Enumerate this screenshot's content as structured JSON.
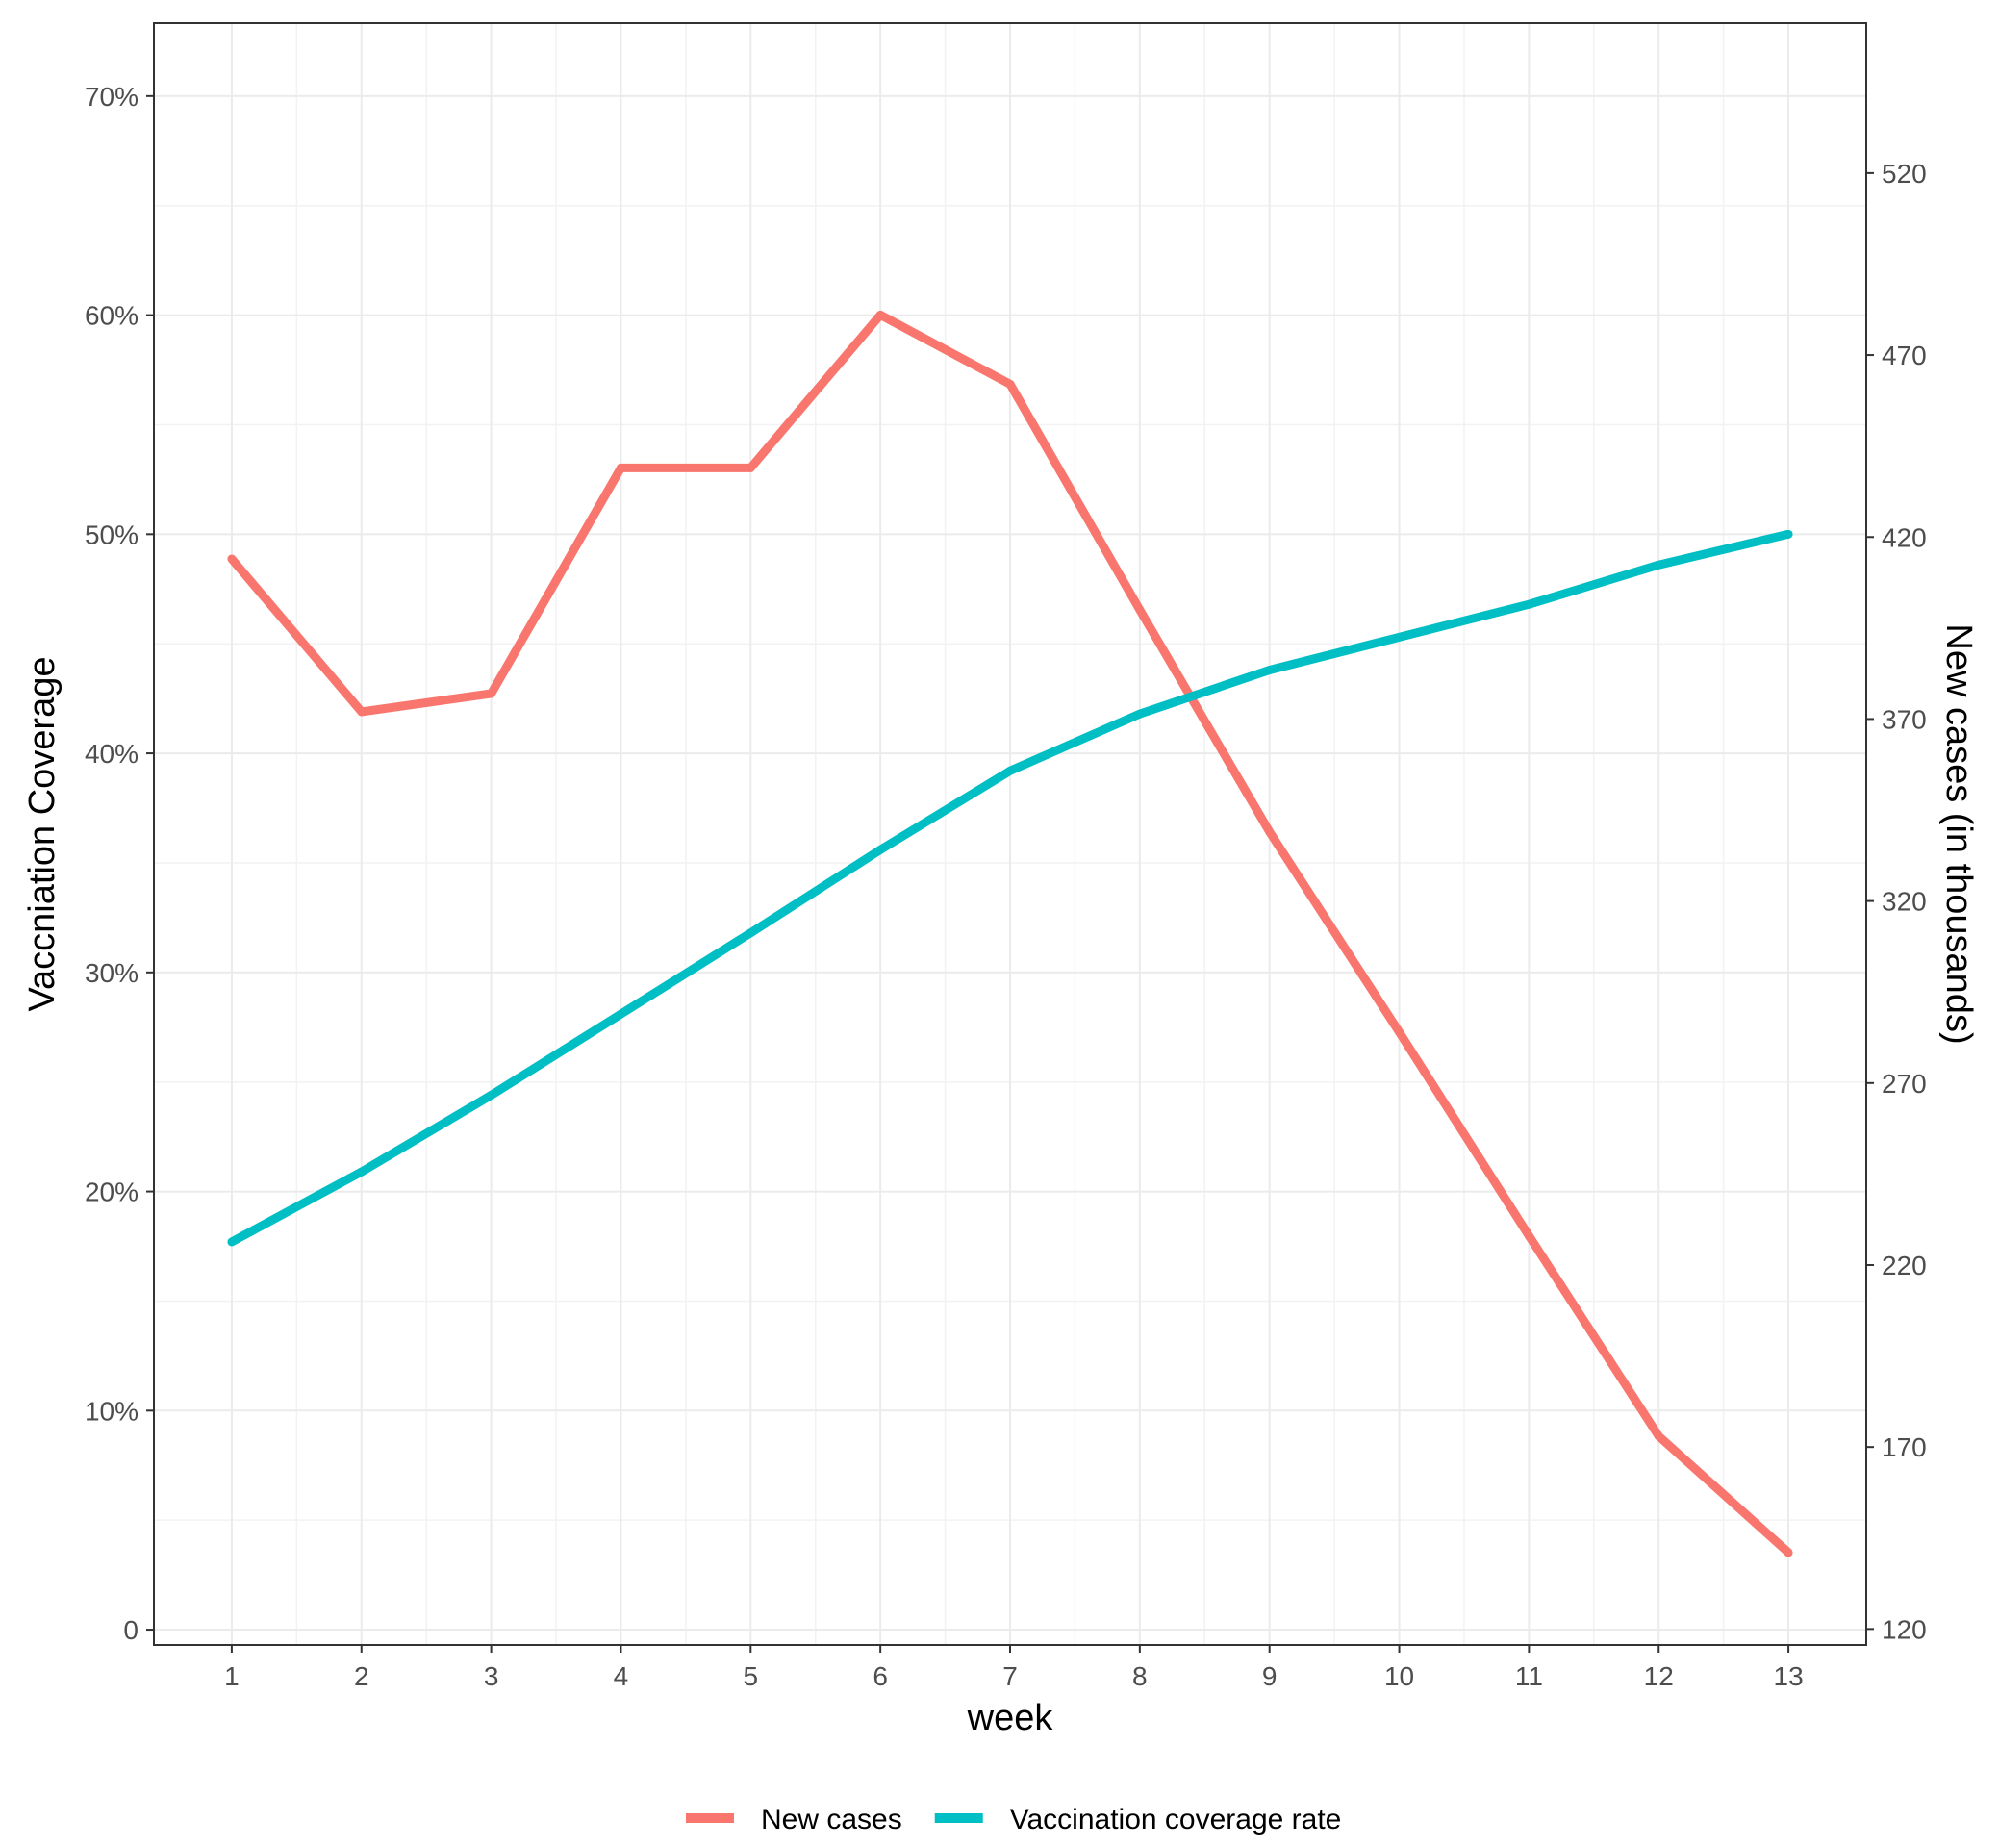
{
  "chart_data": {
    "type": "line",
    "title": "",
    "xlabel": "week",
    "ylabel_left": "Vaccniation Coverage",
    "ylabel_right": "New cases (in thousands)",
    "x": [
      1,
      2,
      3,
      4,
      5,
      6,
      7,
      8,
      9,
      10,
      11,
      12,
      13
    ],
    "x_ticks": [
      "1",
      "2",
      "3",
      "4",
      "5",
      "6",
      "7",
      "8",
      "9",
      "10",
      "11",
      "12",
      "13"
    ],
    "xlim": [
      0.4,
      13.6
    ],
    "ylim_left": [
      -0.007,
      0.7333
    ],
    "ylim_right": [
      115.6,
      561.2
    ],
    "y_ticks_left": [
      {
        "value": 0.0,
        "label": "0"
      },
      {
        "value": 0.1,
        "label": "10%"
      },
      {
        "value": 0.2,
        "label": "20%"
      },
      {
        "value": 0.3,
        "label": "30%"
      },
      {
        "value": 0.4,
        "label": "40%"
      },
      {
        "value": 0.5,
        "label": "50%"
      },
      {
        "value": 0.6,
        "label": "60%"
      },
      {
        "value": 0.7,
        "label": "70%"
      }
    ],
    "y_ticks_right": [
      {
        "value": 120,
        "label": "120"
      },
      {
        "value": 170,
        "label": "170"
      },
      {
        "value": 220,
        "label": "220"
      },
      {
        "value": 270,
        "label": "270"
      },
      {
        "value": 320,
        "label": "320"
      },
      {
        "value": 370,
        "label": "370"
      },
      {
        "value": 420,
        "label": "420"
      },
      {
        "value": 470,
        "label": "470"
      },
      {
        "value": 520,
        "label": "520"
      }
    ],
    "series": [
      {
        "name": "New cases",
        "axis": "right",
        "color": "#F8766D",
        "values": [
          414,
          372,
          377,
          439,
          439,
          481,
          462,
          400,
          339,
          284,
          228,
          173,
          141
        ]
      },
      {
        "name": "Vaccination coverage rate",
        "axis": "left",
        "color": "#00BFC4",
        "values": [
          0.177,
          0.209,
          0.244,
          0.281,
          0.318,
          0.356,
          0.392,
          0.418,
          0.438,
          0.453,
          0.468,
          0.486,
          0.5
        ]
      }
    ],
    "grid": true,
    "legend": "bottom"
  }
}
